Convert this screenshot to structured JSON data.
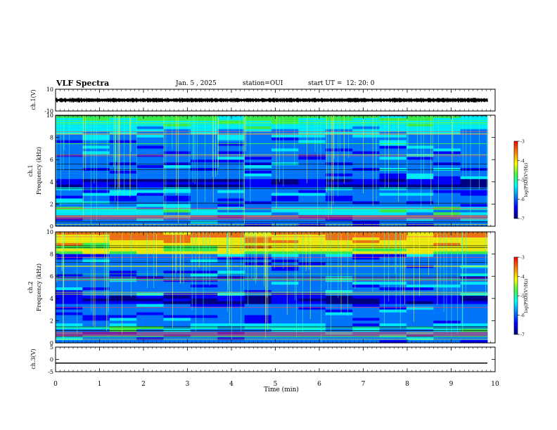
{
  "header": {
    "title": "VLF Spectra",
    "date": "Jan. 5 , 2025",
    "station": "station=OUI",
    "start": "start UT =  12: 20: 0"
  },
  "chart_data": [
    {
      "type": "line",
      "name_label": "ch.1(V)",
      "ylabel": "ch.1(V)",
      "ylim": [
        -10,
        10
      ],
      "yticks": [
        "10",
        "-10"
      ],
      "description_values": {
        "baseline": 0,
        "amplitude_approx": 2
      }
    },
    {
      "type": "heatmap",
      "ylabel_top": "ch.1",
      "ylabel": "Frequency (kHz)",
      "ylim": [
        0,
        10
      ],
      "yticks": [
        "0",
        "2",
        "4",
        "6",
        "8",
        "10"
      ],
      "colorbar": {
        "label": "log(PSD)(V²/Hz)",
        "range": [
          -7,
          -3
        ],
        "ticks": [
          "-3",
          "-4",
          "-5",
          "-6",
          "-7"
        ]
      }
    },
    {
      "type": "heatmap",
      "ylabel_top": "ch.2",
      "ylabel": "Frequency (kHz)",
      "ylim": [
        0,
        10
      ],
      "yticks": [
        "0",
        "2",
        "4",
        "6",
        "8",
        "10"
      ],
      "colorbar": {
        "label": "log(PSD)(V²/Hz)",
        "range": [
          -7,
          -3
        ],
        "ticks": [
          "-3",
          "-4",
          "-5",
          "-6",
          "-7"
        ]
      }
    },
    {
      "type": "line",
      "ylabel": "ch.3(V)",
      "ylim": [
        -5,
        5
      ],
      "yticks": [
        "5",
        "0",
        "-5"
      ],
      "constant_value": -1.5
    }
  ],
  "xaxis": {
    "label": "Time (min)",
    "range": [
      0,
      10
    ],
    "ticks": [
      "0",
      "1",
      "2",
      "3",
      "4",
      "5",
      "6",
      "7",
      "8",
      "9",
      "10"
    ]
  },
  "colors": {
    "colormap": [
      "#00007a",
      "#0000ff",
      "#0080ff",
      "#00ffff",
      "#40ff40",
      "#ffff00",
      "#ff8000",
      "#ff0000",
      "#ffffff"
    ]
  }
}
